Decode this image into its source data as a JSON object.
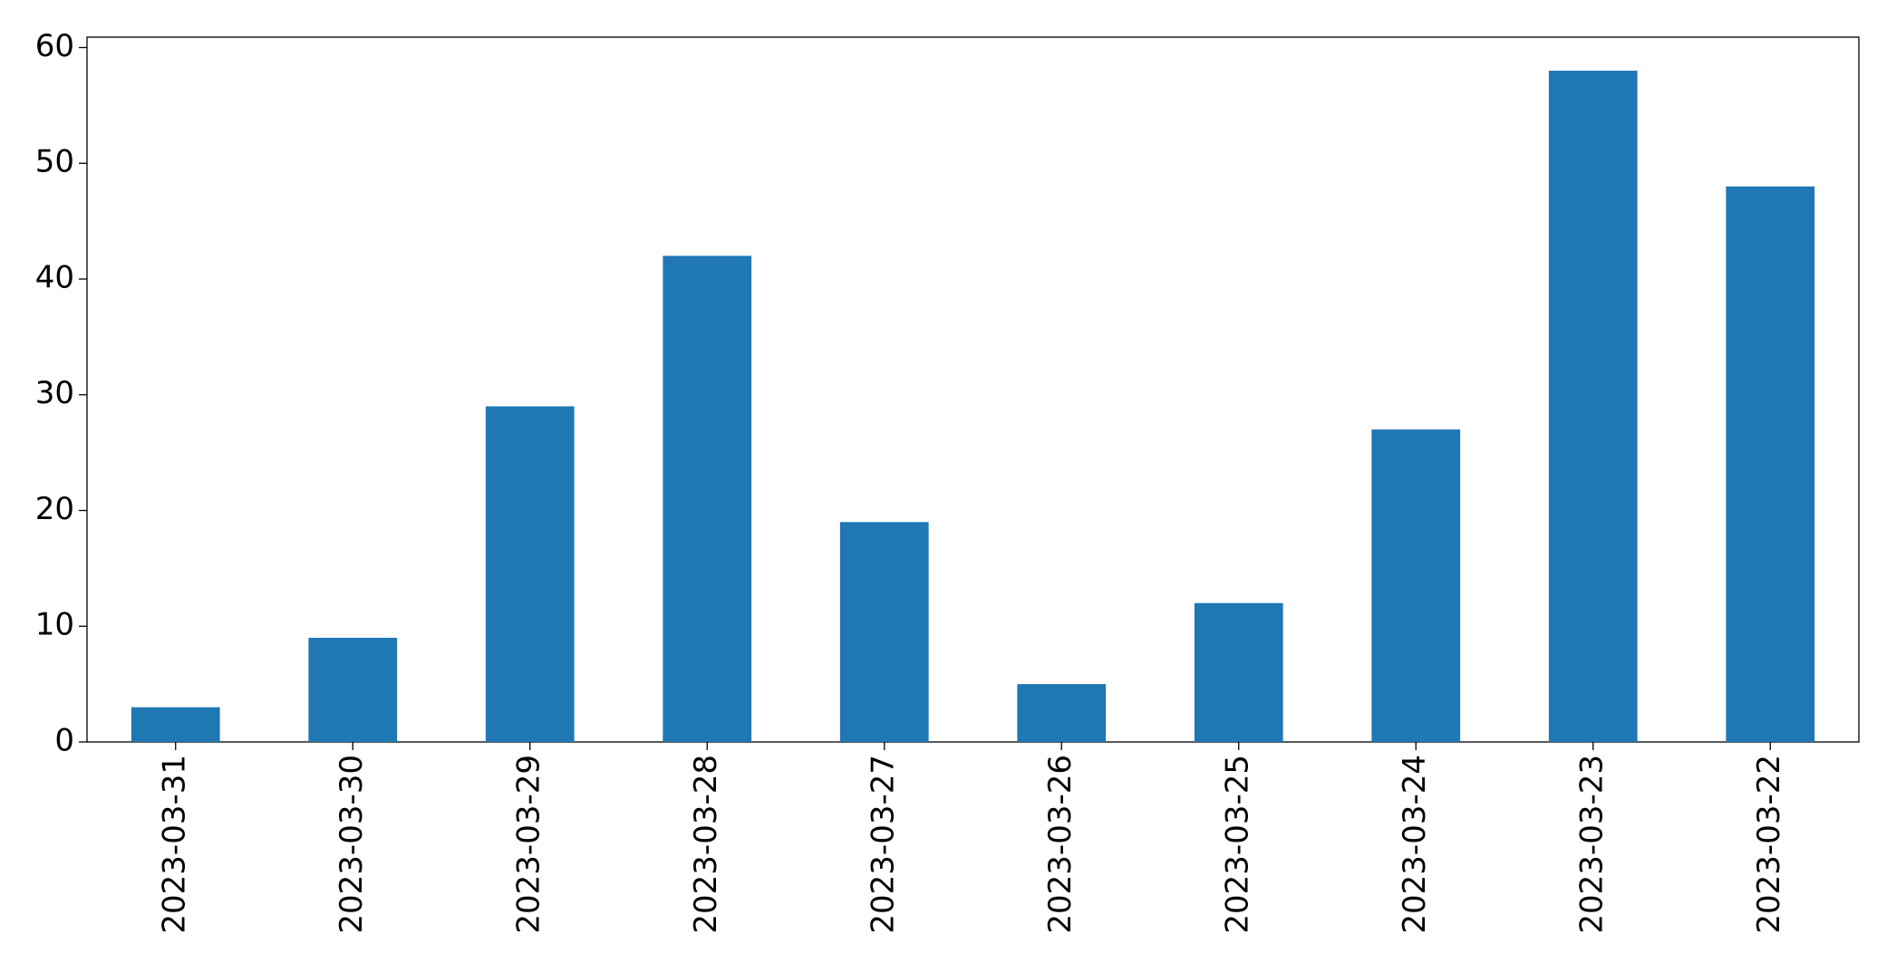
{
  "chart_data": {
    "type": "bar",
    "categories": [
      "2023-03-31",
      "2023-03-30",
      "2023-03-29",
      "2023-03-28",
      "2023-03-27",
      "2023-03-26",
      "2023-03-25",
      "2023-03-24",
      "2023-03-23",
      "2023-03-22"
    ],
    "values": [
      3,
      9,
      29,
      42,
      19,
      5,
      12,
      27,
      58,
      48
    ],
    "color": "#1f77b4",
    "ylim": [
      0,
      60.9
    ],
    "yticks": [
      0,
      10,
      20,
      30,
      40,
      50,
      60
    ],
    "grid": false
  }
}
